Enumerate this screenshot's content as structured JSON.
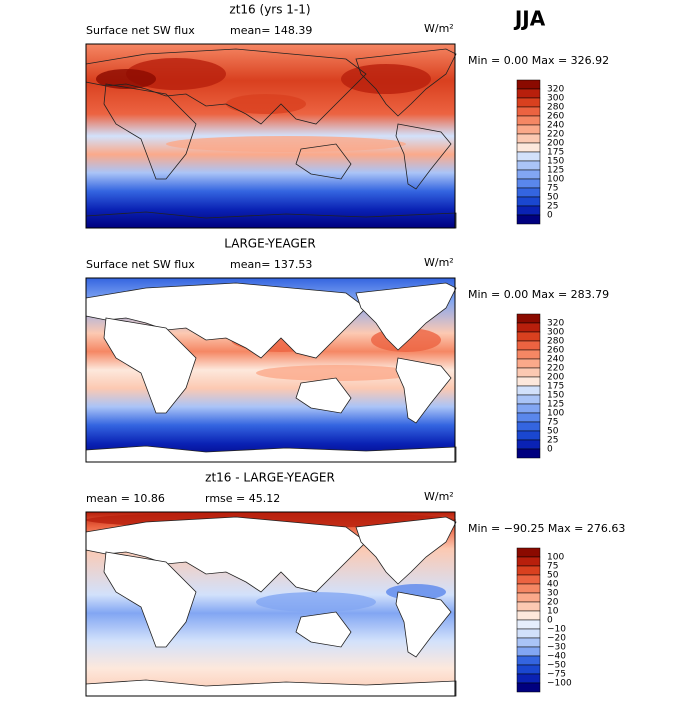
{
  "header": {
    "season": "JJA"
  },
  "panels": [
    {
      "title": "zt16 (yrs 1-1)",
      "left_label": "Surface net SW flux",
      "stat_label": "mean= 148.39",
      "units": "W/m²",
      "min_max": "Min =    0.00 Max = 326.92",
      "colorbar_labels": [
        "320",
        "300",
        "280",
        "260",
        "240",
        "220",
        "200",
        "175",
        "150",
        "125",
        "100",
        "75",
        "50",
        "25",
        "0"
      ]
    },
    {
      "title": "LARGE-YEAGER",
      "left_label": "Surface net SW flux",
      "stat_label": "mean= 137.53",
      "units": "W/m²",
      "min_max": "Min =    0.00 Max = 283.79",
      "colorbar_labels": [
        "320",
        "300",
        "280",
        "260",
        "240",
        "220",
        "200",
        "175",
        "150",
        "125",
        "100",
        "75",
        "50",
        "25",
        "0"
      ]
    },
    {
      "title": "zt16 - LARGE-YEAGER",
      "left_label": "mean =   10.86",
      "stat_label": "rmse =   45.12",
      "units": "W/m²",
      "min_max": "Min = −90.25 Max = 276.63",
      "colorbar_labels": [
        "100",
        "75",
        "50",
        "40",
        "30",
        "20",
        "10",
        "0",
        "−10",
        "−20",
        "−30",
        "−40",
        "−50",
        "−75",
        "−100"
      ]
    }
  ]
}
